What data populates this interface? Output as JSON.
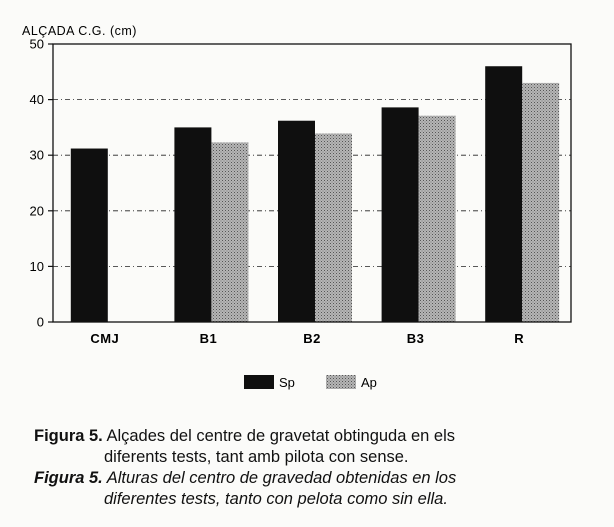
{
  "chart_data": {
    "type": "bar",
    "ylabel": "ALÇADA C.G. (cm)",
    "ylim": [
      0,
      50
    ],
    "yticks": [
      0,
      10,
      20,
      30,
      40,
      50
    ],
    "grid": true,
    "legend_placement": "bottom-center",
    "categories": [
      "CMJ",
      "B1",
      "B2",
      "B3",
      "R"
    ],
    "series": [
      {
        "name": "Sp",
        "values": [
          31.2,
          35.0,
          36.2,
          38.6,
          46.0
        ],
        "fill": "#0f0f0f"
      },
      {
        "name": "Ap",
        "values": [
          null,
          32.3,
          33.9,
          37.1,
          43.0
        ],
        "fill": "#a9a9a9"
      }
    ]
  },
  "caption": {
    "catalan_label": "Figura 5.",
    "catalan_line1": "Alçades del centre de gravetat obtinguda en els",
    "catalan_line2": "diferents tests, tant amb pilota con sense.",
    "spanish_label": "Figura 5.",
    "spanish_line1": "Alturas del centro de gravedad obtenidas en los",
    "spanish_line2": "diferentes tests, tanto con pelota como sin ella."
  }
}
